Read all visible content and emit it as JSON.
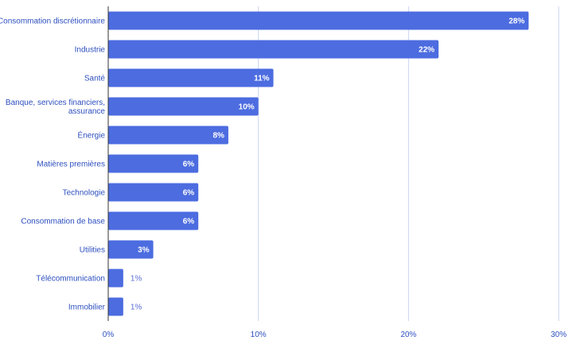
{
  "chart_data": {
    "type": "bar",
    "orientation": "horizontal",
    "categories": [
      "Consommation discrétionnaire",
      "Industrie",
      "Santé",
      "Banque, services financiers, assurance",
      "Énergie",
      "Matières premières",
      "Technologie",
      "Consommation de base",
      "Utilities",
      "Télécommunication",
      "Immobilier"
    ],
    "values": [
      28,
      22,
      11,
      10,
      8,
      6,
      6,
      6,
      3,
      1,
      1
    ],
    "value_labels": [
      "28%",
      "22%",
      "11%",
      "10%",
      "8%",
      "6%",
      "6%",
      "6%",
      "3%",
      "1%",
      "1%"
    ],
    "xlim": [
      0,
      30
    ],
    "xticks": [
      0,
      10,
      20,
      30
    ],
    "xtick_labels": [
      "0%",
      "10%",
      "20%",
      "30%"
    ],
    "grid": true,
    "legend": "none",
    "colors": {
      "bar": "#4c6ce0",
      "grid": "#c9d3f2",
      "text": "#2d4fbf"
    }
  }
}
